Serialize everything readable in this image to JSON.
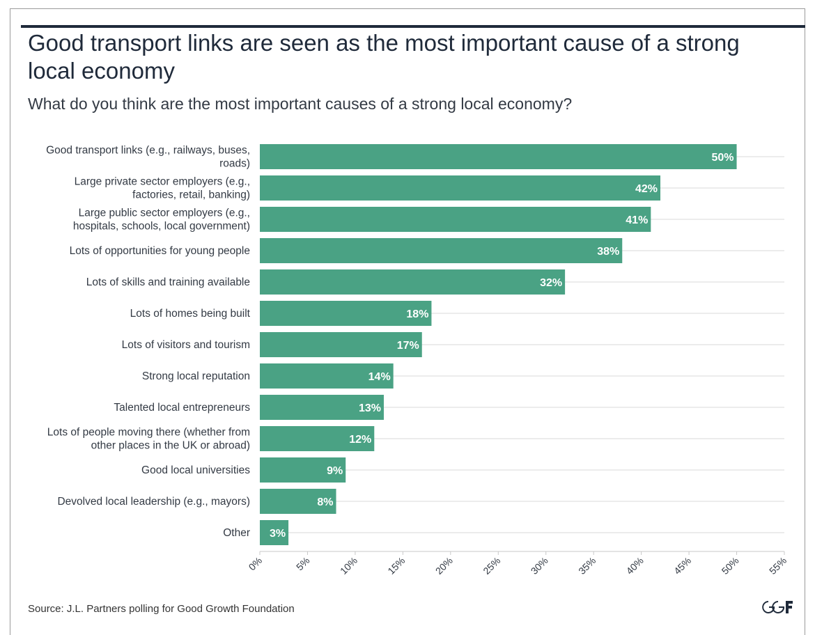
{
  "header": {
    "title": "Good transport links are seen as the most important cause of a strong local economy",
    "subtitle": "What do you think are the most important causes of a strong local economy?"
  },
  "footer": {
    "source": "Source: J.L. Partners polling for Good Growth Foundation",
    "logo_icon": "ggf-logo-icon",
    "logo_text": "GGF"
  },
  "colors": {
    "bar": "#4aa284",
    "grid": "#e6e6e6",
    "text": "#333a44",
    "title": "#1f2a3a"
  },
  "chart_data": {
    "type": "bar",
    "orientation": "horizontal",
    "title": "Good transport links are seen as the most important cause of a strong local economy",
    "subtitle": "What do you think are the most important causes of a strong local economy?",
    "categories": [
      "Good transport links (e.g., railways, buses, roads)",
      "Large private sector employers (e.g., factories, retail, banking)",
      "Large public sector employers (e.g., hospitals, schools, local government)",
      "Lots of opportunities for young people",
      "Lots of skills and training available",
      "Lots of homes being built",
      "Lots of visitors and tourism",
      "Strong local reputation",
      "Talented local entrepreneurs",
      "Lots of people moving there (whether from other places in the UK or abroad)",
      "Good local universities",
      "Devolved local leadership (e.g., mayors)",
      "Other"
    ],
    "category_lines": [
      [
        "Good transport links (e.g., railways, buses,",
        "roads)"
      ],
      [
        "Large private sector employers (e.g.,",
        "factories, retail, banking)"
      ],
      [
        "Large public sector employers (e.g.,",
        "hospitals, schools, local government)"
      ],
      [
        "Lots of opportunities for young people"
      ],
      [
        "Lots of skills and training available"
      ],
      [
        "Lots of homes being built"
      ],
      [
        "Lots of visitors and tourism"
      ],
      [
        "Strong local reputation"
      ],
      [
        "Talented local entrepreneurs"
      ],
      [
        "Lots of people moving there (whether from",
        "other places in the UK or abroad)"
      ],
      [
        "Good local universities"
      ],
      [
        "Devolved local leadership (e.g., mayors)"
      ],
      [
        "Other"
      ]
    ],
    "values": [
      50,
      42,
      41,
      38,
      32,
      18,
      17,
      14,
      13,
      12,
      9,
      8,
      3
    ],
    "value_labels": [
      "50%",
      "42%",
      "41%",
      "38%",
      "32%",
      "18%",
      "17%",
      "14%",
      "13%",
      "12%",
      "9%",
      "8%",
      "3%"
    ],
    "xlim": [
      0,
      55
    ],
    "xticks": [
      0,
      5,
      10,
      15,
      20,
      25,
      30,
      35,
      40,
      45,
      50,
      55
    ],
    "xtick_labels": [
      "0%",
      "5%",
      "10%",
      "15%",
      "20%",
      "25%",
      "30%",
      "35%",
      "40%",
      "45%",
      "50%",
      "55%"
    ],
    "xlabel": "",
    "ylabel": "",
    "grid": true,
    "legend": "none"
  }
}
